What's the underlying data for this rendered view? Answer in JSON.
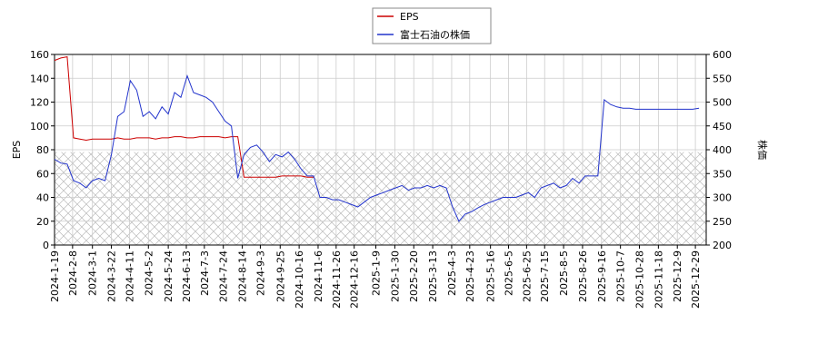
{
  "chart_data": {
    "type": "line",
    "ylabel": "EPS",
    "y2label": "株価",
    "ylim": [
      0,
      160
    ],
    "yticks": [
      0,
      20,
      40,
      60,
      80,
      100,
      120,
      140,
      160
    ],
    "y2lim": [
      200,
      600
    ],
    "y2ticks": [
      200,
      250,
      300,
      350,
      400,
      450,
      500,
      550,
      600
    ],
    "xlim": [
      "2024-1-19",
      "2026-1-10"
    ],
    "xticks": [
      "2024-1-19",
      "2024-2-8",
      "2024-3-1",
      "2024-3-22",
      "2024-4-11",
      "2024-5-2",
      "2024-5-24",
      "2024-6-13",
      "2024-7-3",
      "2024-7-24",
      "2024-8-14",
      "2024-9-3",
      "2024-9-25",
      "2024-10-16",
      "2024-11-6",
      "2024-11-26",
      "2024-12-16",
      "2025-1-9",
      "2025-1-30",
      "2025-2-20",
      "2025-3-13",
      "2025-4-3",
      "2025-4-23",
      "2025-5-16",
      "2025-6-5",
      "2025-6-25",
      "2025-7-15",
      "2025-8-5",
      "2025-8-26",
      "2025-9-16",
      "2025-10-7",
      "2025-10-28",
      "2025-11-18",
      "2025-12-9",
      "2025-12-29"
    ],
    "grid": true,
    "shaded_region": {
      "ylim": [
        0,
        78
      ]
    },
    "legend": "top",
    "x": [
      "2024-1-19",
      "2024-1-26",
      "2024-2-2",
      "2024-2-9",
      "2024-2-16",
      "2024-2-23",
      "2024-3-1",
      "2024-3-8",
      "2024-3-15",
      "2024-3-22",
      "2024-3-29",
      "2024-4-5",
      "2024-4-12",
      "2024-4-19",
      "2024-4-26",
      "2024-5-3",
      "2024-5-10",
      "2024-5-17",
      "2024-5-24",
      "2024-5-31",
      "2024-6-7",
      "2024-6-14",
      "2024-6-21",
      "2024-6-28",
      "2024-7-5",
      "2024-7-12",
      "2024-7-19",
      "2024-7-26",
      "2024-8-2",
      "2024-8-9",
      "2024-8-16",
      "2024-8-23",
      "2024-8-30",
      "2024-9-6",
      "2024-9-13",
      "2024-9-20",
      "2024-9-27",
      "2024-10-4",
      "2024-10-11",
      "2024-10-18",
      "2024-10-25",
      "2024-11-1",
      "2024-11-8",
      "2024-11-15",
      "2024-11-22",
      "2024-11-29",
      "2024-12-6",
      "2024-12-13",
      "2024-12-20",
      "2024-12-27",
      "2025-1-3",
      "2025-1-10",
      "2025-1-17",
      "2025-1-24",
      "2025-1-31",
      "2025-2-7",
      "2025-2-14",
      "2025-2-21",
      "2025-2-28",
      "2025-3-7",
      "2025-3-14",
      "2025-3-21",
      "2025-3-28",
      "2025-4-4",
      "2025-4-11",
      "2025-4-18",
      "2025-4-25",
      "2025-5-2",
      "2025-5-9",
      "2025-5-16",
      "2025-5-23",
      "2025-5-30",
      "2025-6-6",
      "2025-6-13",
      "2025-6-20",
      "2025-6-27",
      "2025-7-4",
      "2025-7-11",
      "2025-7-18",
      "2025-7-25",
      "2025-8-1",
      "2025-8-8",
      "2025-8-15",
      "2025-8-22",
      "2025-8-29",
      "2025-9-5",
      "2025-9-12",
      "2025-9-19",
      "2025-9-26",
      "2025-10-3",
      "2025-10-10",
      "2025-10-17",
      "2025-10-24",
      "2025-10-31",
      "2025-11-7",
      "2025-11-14",
      "2025-11-21",
      "2025-11-28",
      "2025-12-5",
      "2025-12-12",
      "2025-12-19",
      "2025-12-26",
      "2026-1-2"
    ],
    "series": [
      {
        "name": "EPS",
        "color": "#cc0000",
        "values": [
          155,
          157,
          158,
          90,
          89,
          88,
          89,
          89,
          89,
          89,
          90,
          89,
          89,
          90,
          90,
          90,
          89,
          90,
          90,
          91,
          91,
          90,
          90,
          91,
          91,
          91,
          91,
          90,
          91,
          91,
          57,
          57,
          57,
          57,
          57,
          57,
          58,
          58,
          58,
          58,
          57,
          57,
          null,
          null,
          null,
          null,
          null,
          null,
          null,
          null,
          null,
          null,
          null,
          null,
          null,
          null,
          null,
          null,
          null,
          null,
          null,
          null,
          null,
          null,
          null,
          null,
          null,
          null,
          null,
          null,
          null,
          null,
          null,
          null,
          null,
          null,
          null,
          null,
          null,
          null,
          null,
          null,
          null,
          null,
          null,
          null,
          null,
          null,
          null,
          null,
          null,
          null,
          null,
          null,
          null,
          null,
          null,
          null,
          null,
          null,
          null,
          null,
          null
        ]
      },
      {
        "name": "富士石油の株価",
        "color": "#2233cc",
        "axis": "y2",
        "values": [
          380,
          372,
          370,
          335,
          330,
          320,
          335,
          340,
          335,
          390,
          470,
          480,
          545,
          525,
          470,
          480,
          465,
          490,
          475,
          520,
          510,
          555,
          520,
          515,
          510,
          500,
          480,
          460,
          450,
          340,
          390,
          405,
          410,
          395,
          375,
          390,
          385,
          395,
          380,
          360,
          345,
          345,
          300,
          300,
          295,
          295,
          290,
          285,
          280,
          290,
          300,
          305,
          310,
          315,
          320,
          325,
          315,
          320,
          320,
          325,
          320,
          325,
          320,
          280,
          250,
          265,
          270,
          278,
          285,
          290,
          295,
          300,
          300,
          300,
          305,
          310,
          300,
          320,
          325,
          330,
          320,
          325,
          340,
          330,
          345,
          345,
          345,
          505,
          495,
          490,
          487,
          487,
          485,
          485,
          485,
          485,
          485,
          485,
          485,
          485,
          485,
          485,
          487
        ]
      }
    ]
  }
}
